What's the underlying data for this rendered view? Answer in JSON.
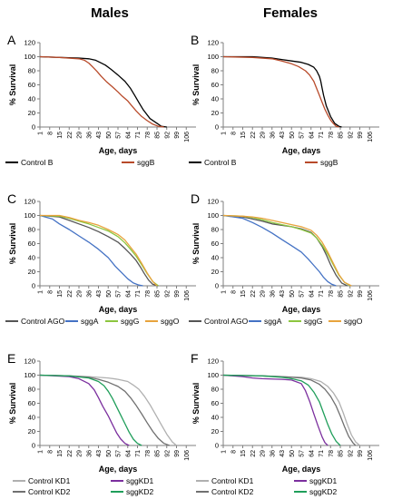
{
  "column_titles": [
    "Males",
    "Females"
  ],
  "chart_data": [
    {
      "panel": "A",
      "type": "line",
      "ylabel": "% Survival",
      "xlabel": "Age, days",
      "ylim": [
        0,
        120
      ],
      "yticks": [
        0,
        20,
        40,
        60,
        80,
        100,
        120
      ],
      "xlim": [
        1,
        113
      ],
      "xticks": [
        "1",
        "8",
        "15",
        "22",
        "29",
        "36",
        "43",
        "50",
        "57",
        "64",
        "71",
        "78",
        "85",
        "92",
        "99",
        "106"
      ],
      "grid": false,
      "series": [
        {
          "name": "Control B",
          "color": "#000000",
          "x": [
            1,
            15,
            29,
            36,
            41,
            44,
            48,
            52,
            57,
            62,
            66,
            69,
            72,
            75,
            80,
            86,
            88,
            92
          ],
          "y": [
            100,
            99,
            98,
            97,
            95,
            92,
            88,
            82,
            74,
            65,
            55,
            45,
            35,
            25,
            12,
            4,
            1,
            0
          ]
        },
        {
          "name": "sggB",
          "color": "#b84a2a",
          "x": [
            1,
            15,
            29,
            33,
            36,
            39,
            42,
            45,
            49,
            53,
            57,
            60,
            64,
            67,
            70,
            74,
            78,
            82,
            86,
            90
          ],
          "y": [
            100,
            99,
            97,
            95,
            91,
            85,
            79,
            72,
            64,
            57,
            50,
            44,
            37,
            30,
            23,
            15,
            9,
            4,
            1,
            0
          ]
        }
      ]
    },
    {
      "panel": "B",
      "type": "line",
      "ylabel": "% Survival",
      "xlabel": "Age, days",
      "ylim": [
        0,
        120
      ],
      "yticks": [
        0,
        20,
        40,
        60,
        80,
        100,
        120
      ],
      "xlim": [
        1,
        113
      ],
      "xticks": [
        "1",
        "8",
        "15",
        "22",
        "29",
        "36",
        "43",
        "50",
        "57",
        "64",
        "71",
        "78",
        "85",
        "92",
        "99",
        "106"
      ],
      "grid": false,
      "series": [
        {
          "name": "Control B",
          "color": "#000000",
          "x": [
            1,
            22,
            36,
            43,
            50,
            57,
            62,
            66,
            68,
            70,
            71,
            72,
            73,
            75,
            78,
            81,
            84,
            86
          ],
          "y": [
            100,
            100,
            98,
            96,
            94,
            92,
            89,
            85,
            80,
            72,
            65,
            55,
            45,
            30,
            15,
            5,
            1,
            0
          ]
        },
        {
          "name": "sggB",
          "color": "#b84a2a",
          "x": [
            1,
            22,
            36,
            43,
            50,
            55,
            60,
            63,
            66,
            68,
            70,
            72,
            74,
            76,
            78,
            80,
            82,
            84
          ],
          "y": [
            100,
            99,
            97,
            94,
            90,
            86,
            80,
            74,
            65,
            55,
            45,
            35,
            25,
            17,
            10,
            5,
            1,
            0
          ]
        }
      ]
    },
    {
      "panel": "C",
      "type": "line",
      "ylabel": "% Survival",
      "xlabel": "Age, days",
      "ylim": [
        0,
        120
      ],
      "yticks": [
        0,
        20,
        40,
        60,
        80,
        100,
        120
      ],
      "xlim": [
        1,
        113
      ],
      "xticks": [
        "1",
        "8",
        "15",
        "22",
        "29",
        "36",
        "43",
        "50",
        "57",
        "64",
        "71",
        "78",
        "85",
        "92",
        "99",
        "106"
      ],
      "grid": false,
      "series": [
        {
          "name": "Control AGO",
          "color": "#555555",
          "x": [
            1,
            15,
            22,
            29,
            36,
            43,
            50,
            57,
            62,
            66,
            70,
            73,
            76,
            79,
            82,
            86
          ],
          "y": [
            100,
            98,
            93,
            88,
            83,
            77,
            70,
            62,
            53,
            45,
            36,
            27,
            17,
            8,
            2,
            0
          ]
        },
        {
          "name": "sggA",
          "color": "#4472c4",
          "x": [
            1,
            10,
            15,
            22,
            29,
            36,
            43,
            50,
            55,
            60,
            64,
            68,
            72,
            75
          ],
          "y": [
            100,
            95,
            88,
            80,
            71,
            62,
            52,
            40,
            28,
            18,
            10,
            4,
            1,
            0
          ]
        },
        {
          "name": "sggG",
          "color": "#8cc63f",
          "x": [
            1,
            15,
            22,
            29,
            36,
            43,
            50,
            57,
            62,
            66,
            70,
            74,
            78,
            82,
            86
          ],
          "y": [
            100,
            99,
            96,
            92,
            88,
            83,
            78,
            70,
            61,
            52,
            42,
            30,
            17,
            6,
            0
          ]
        },
        {
          "name": "sggO",
          "color": "#e8a33d",
          "x": [
            1,
            15,
            22,
            29,
            36,
            43,
            50,
            57,
            62,
            66,
            70,
            74,
            78,
            82,
            85
          ],
          "y": [
            100,
            100,
            97,
            93,
            90,
            86,
            80,
            73,
            65,
            55,
            45,
            32,
            18,
            6,
            0
          ]
        }
      ]
    },
    {
      "panel": "D",
      "type": "line",
      "ylabel": "% Survival",
      "xlabel": "Age, days",
      "ylim": [
        0,
        120
      ],
      "yticks": [
        0,
        20,
        40,
        60,
        80,
        100,
        120
      ],
      "xlim": [
        1,
        113
      ],
      "xticks": [
        "1",
        "8",
        "15",
        "22",
        "29",
        "36",
        "43",
        "50",
        "57",
        "64",
        "71",
        "78",
        "85",
        "92",
        "99",
        "106"
      ],
      "grid": false,
      "series": [
        {
          "name": "Control AGO",
          "color": "#555555",
          "x": [
            1,
            15,
            22,
            29,
            36,
            43,
            50,
            57,
            64,
            68,
            72,
            75,
            78,
            82,
            86,
            90
          ],
          "y": [
            100,
            98,
            95,
            92,
            88,
            86,
            84,
            81,
            76,
            68,
            56,
            44,
            30,
            15,
            4,
            0
          ]
        },
        {
          "name": "sggA",
          "color": "#4472c4",
          "x": [
            1,
            15,
            22,
            29,
            36,
            43,
            50,
            57,
            62,
            66,
            70,
            73,
            76,
            79,
            82
          ],
          "y": [
            100,
            96,
            90,
            83,
            75,
            66,
            57,
            48,
            38,
            29,
            20,
            12,
            6,
            2,
            0
          ]
        },
        {
          "name": "sggG",
          "color": "#8cc63f",
          "x": [
            1,
            15,
            22,
            29,
            36,
            43,
            50,
            57,
            64,
            68,
            72,
            76,
            80,
            84,
            88,
            92
          ],
          "y": [
            100,
            99,
            97,
            94,
            90,
            87,
            84,
            80,
            75,
            68,
            58,
            45,
            30,
            15,
            5,
            0
          ]
        },
        {
          "name": "sggO",
          "color": "#e8a33d",
          "x": [
            1,
            15,
            22,
            29,
            36,
            43,
            50,
            57,
            64,
            68,
            72,
            76,
            80,
            84,
            88,
            93
          ],
          "y": [
            100,
            99,
            98,
            96,
            93,
            90,
            87,
            84,
            79,
            72,
            62,
            48,
            32,
            16,
            5,
            0
          ]
        }
      ]
    },
    {
      "panel": "E",
      "type": "line",
      "ylabel": "% Survival",
      "xlabel": "Age, days",
      "ylim": [
        0,
        120
      ],
      "yticks": [
        0,
        20,
        40,
        60,
        80,
        100,
        120
      ],
      "xlim": [
        1,
        113
      ],
      "xticks": [
        "1",
        "8",
        "15",
        "22",
        "29",
        "36",
        "43",
        "50",
        "57",
        "64",
        "71",
        "78",
        "85",
        "92",
        "99",
        "106"
      ],
      "grid": false,
      "series": [
        {
          "name": "Control KD1",
          "color": "#b0b0b0",
          "x": [
            1,
            22,
            36,
            50,
            57,
            64,
            68,
            72,
            76,
            80,
            84,
            88,
            92,
            96,
            99
          ],
          "y": [
            100,
            99,
            98,
            96,
            94,
            91,
            86,
            80,
            70,
            58,
            44,
            30,
            16,
            5,
            0
          ]
        },
        {
          "name": "sggKD1",
          "color": "#7b2f9e",
          "x": [
            1,
            22,
            29,
            36,
            40,
            43,
            46,
            50,
            53,
            56,
            59,
            62,
            65
          ],
          "y": [
            100,
            98,
            95,
            88,
            79,
            68,
            56,
            42,
            30,
            18,
            9,
            3,
            0
          ]
        },
        {
          "name": "Control KD2",
          "color": "#707070",
          "x": [
            1,
            22,
            36,
            43,
            50,
            57,
            62,
            66,
            70,
            74,
            78,
            82,
            86,
            90,
            94
          ],
          "y": [
            100,
            99,
            97,
            94,
            90,
            84,
            77,
            68,
            57,
            45,
            32,
            20,
            10,
            3,
            0
          ]
        },
        {
          "name": "sggKD2",
          "color": "#1f9e5a",
          "x": [
            1,
            22,
            36,
            43,
            47,
            50,
            53,
            56,
            59,
            62,
            65,
            68,
            71,
            74
          ],
          "y": [
            100,
            99,
            96,
            91,
            85,
            77,
            67,
            55,
            43,
            31,
            19,
            9,
            3,
            0
          ]
        }
      ]
    },
    {
      "panel": "F",
      "type": "line",
      "ylabel": "% Survival",
      "xlabel": "Age, days",
      "ylim": [
        0,
        120
      ],
      "yticks": [
        0,
        20,
        40,
        60,
        80,
        100,
        120
      ],
      "xlim": [
        1,
        113
      ],
      "xticks": [
        "1",
        "8",
        "15",
        "22",
        "29",
        "36",
        "43",
        "50",
        "57",
        "64",
        "71",
        "78",
        "85",
        "92",
        "99",
        "106"
      ],
      "grid": false,
      "series": [
        {
          "name": "Control KD1",
          "color": "#b0b0b0",
          "x": [
            1,
            29,
            43,
            57,
            64,
            71,
            76,
            80,
            84,
            87,
            90,
            93,
            96,
            99
          ],
          "y": [
            100,
            99,
            98,
            97,
            95,
            91,
            84,
            75,
            62,
            47,
            30,
            15,
            5,
            0
          ]
        },
        {
          "name": "sggKD1",
          "color": "#7b2f9e",
          "x": [
            1,
            15,
            22,
            29,
            43,
            50,
            57,
            60,
            63,
            66,
            69,
            72,
            74,
            76
          ],
          "y": [
            100,
            98,
            96,
            95,
            94,
            93,
            88,
            78,
            63,
            45,
            28,
            12,
            4,
            0
          ]
        },
        {
          "name": "Control KD2",
          "color": "#707070",
          "x": [
            1,
            29,
            43,
            57,
            64,
            70,
            74,
            78,
            82,
            85,
            88,
            91,
            94,
            96
          ],
          "y": [
            100,
            99,
            98,
            96,
            93,
            87,
            80,
            70,
            56,
            42,
            27,
            13,
            4,
            0
          ]
        },
        {
          "name": "sggKD2",
          "color": "#1f9e5a",
          "x": [
            1,
            29,
            43,
            50,
            57,
            62,
            66,
            70,
            73,
            76,
            79,
            82,
            85
          ],
          "y": [
            100,
            99,
            97,
            95,
            92,
            86,
            76,
            62,
            46,
            30,
            16,
            6,
            0
          ]
        }
      ]
    }
  ]
}
